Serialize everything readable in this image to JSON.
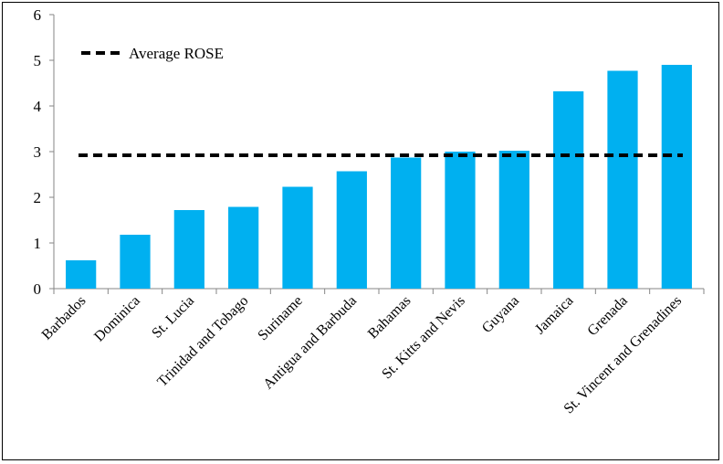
{
  "chart_data": {
    "type": "bar",
    "title": "",
    "xlabel": "",
    "ylabel": "",
    "ylim": [
      0,
      6
    ],
    "yticks": [
      0,
      1,
      2,
      3,
      4,
      5,
      6
    ],
    "grid": false,
    "legend_position": "top-left",
    "bar_color": "#00B0F0",
    "categories": [
      "Barbados",
      "Dominica",
      "St. Lucia",
      "Trinidad and Tobago",
      "Suriname",
      "Antigua and Barbuda",
      "Bahamas",
      "St. Kitts and Nevis",
      "Guyana",
      "Jamaica",
      "Grenada",
      "St. Vincent and Grenadines"
    ],
    "values": [
      0.62,
      1.18,
      1.72,
      1.79,
      2.23,
      2.57,
      2.87,
      3.0,
      3.02,
      4.32,
      4.77,
      4.9
    ],
    "reference_line": {
      "name": "Average ROSE",
      "value": 2.92,
      "style": "dashed",
      "color": "#000000"
    }
  }
}
